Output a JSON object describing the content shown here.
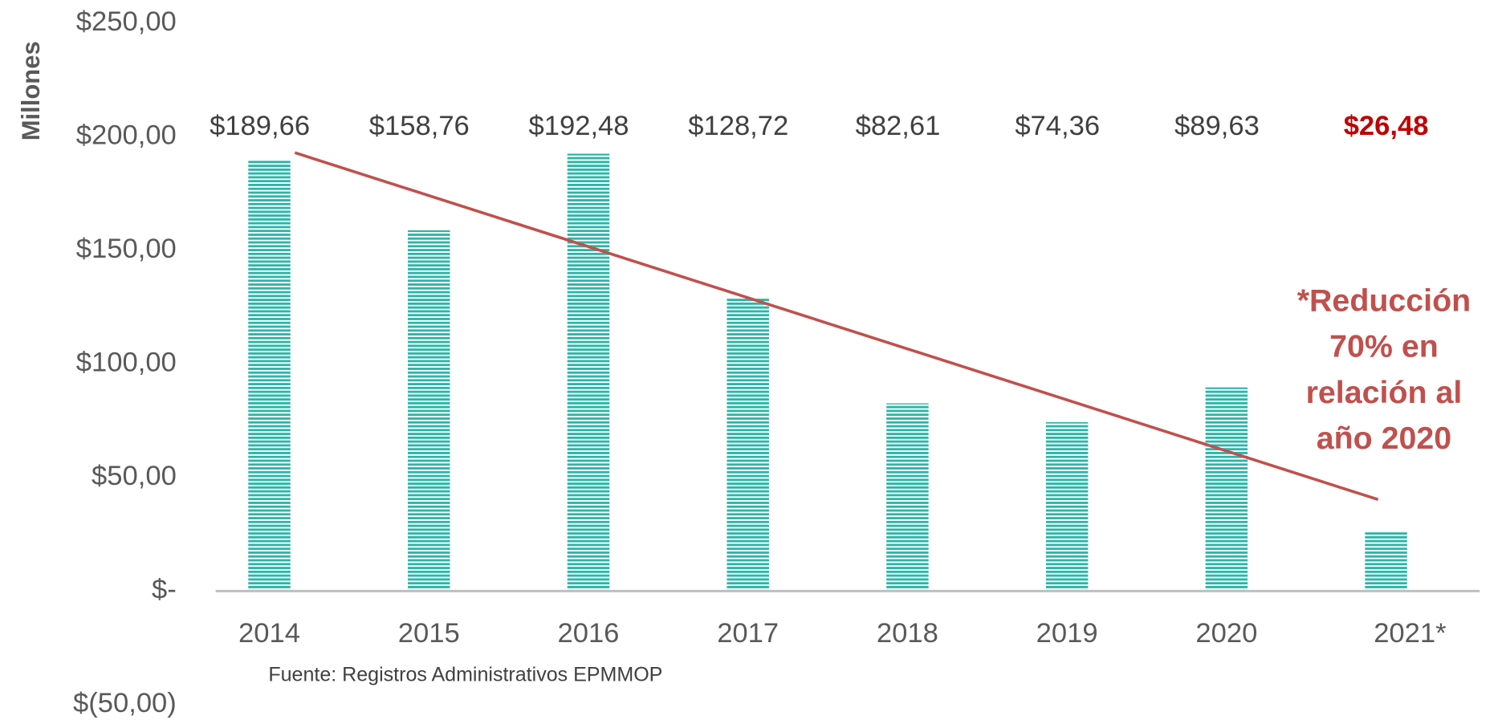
{
  "chart_data": {
    "type": "bar",
    "y_label": "Millones",
    "categories": [
      "2014",
      "2015",
      "2016",
      "2017",
      "2018",
      "2019",
      "2020",
      "2021*"
    ],
    "values": [
      189.66,
      158.76,
      192.48,
      128.72,
      82.61,
      74.36,
      89.63,
      26.48
    ],
    "value_labels": [
      "$189,66",
      "$158,76",
      "$192,48",
      "$128,72",
      "$82,61",
      "$74,36",
      "$89,63",
      "$26,48"
    ],
    "value_label_colors": [
      "#404040",
      "#404040",
      "#404040",
      "#404040",
      "#404040",
      "#404040",
      "#404040",
      "#c00000"
    ],
    "color": "#2bb5a8",
    "trendline": true,
    "trendline_color": "#c0504d",
    "ylim": [
      -50,
      250
    ],
    "yticks": [
      {
        "value": -50,
        "label": "$(50,00)"
      },
      {
        "value": 0,
        "label": "$-"
      },
      {
        "value": 50,
        "label": "$50,00"
      },
      {
        "value": 100,
        "label": "$100,00"
      },
      {
        "value": 150,
        "label": "$150,00"
      },
      {
        "value": 200,
        "label": "$200,00"
      },
      {
        "value": 250,
        "label": "$250,00"
      }
    ],
    "annotation": [
      "*Reducción",
      "70% en",
      "relación al",
      "año 2020"
    ],
    "annotation_color": "#c0504d",
    "source": "Fuente:  Registros Administrativos EPMMOP"
  }
}
